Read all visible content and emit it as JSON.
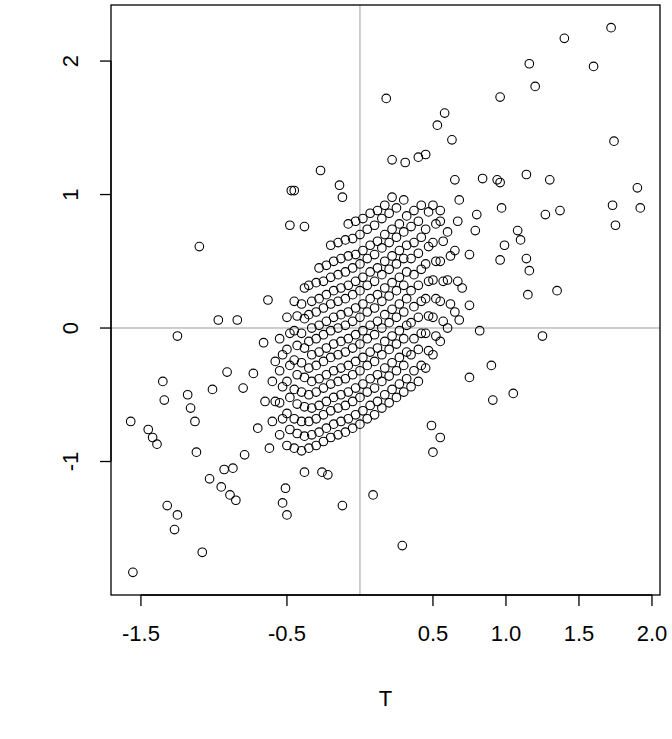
{
  "chart_data": {
    "type": "scatter",
    "xlabel": "T",
    "color": "#000000",
    "marker": "circle-open",
    "xlim": [
      -1.705,
      2.055
    ],
    "ylim": [
      -2.0,
      2.42
    ],
    "xticks": [
      -1.5,
      -0.5,
      0.5,
      {
        "value": 1.0,
        "label": "1.0"
      },
      1.5,
      {
        "value": 2.0,
        "label": "2.0"
      }
    ],
    "yticks": [
      -1,
      0,
      1,
      2
    ],
    "hlines": [
      0
    ],
    "vlines": [
      0
    ],
    "x": [
      -0.6,
      -0.58,
      -0.6,
      -0.58,
      -0.55,
      -0.53,
      -0.55,
      -0.53,
      -0.55,
      -0.53,
      -0.55,
      -0.5,
      -0.48,
      -0.5,
      -0.48,
      -0.5,
      -0.48,
      -0.5,
      -0.48,
      -0.5,
      -0.45,
      -0.43,
      -0.45,
      -0.43,
      -0.45,
      -0.43,
      -0.45,
      -0.43,
      -0.45,
      -0.43,
      -0.45,
      -0.4,
      -0.38,
      -0.4,
      -0.38,
      -0.4,
      -0.38,
      -0.4,
      -0.38,
      -0.4,
      -0.38,
      -0.4,
      -0.38,
      -0.35,
      -0.33,
      -0.35,
      -0.33,
      -0.35,
      -0.33,
      -0.35,
      -0.33,
      -0.35,
      -0.33,
      -0.35,
      -0.33,
      -0.35,
      -0.3,
      -0.28,
      -0.3,
      -0.28,
      -0.3,
      -0.28,
      -0.3,
      -0.28,
      -0.3,
      -0.28,
      -0.3,
      -0.28,
      -0.3,
      -0.28,
      -0.25,
      -0.23,
      -0.25,
      -0.23,
      -0.25,
      -0.23,
      -0.25,
      -0.23,
      -0.25,
      -0.23,
      -0.25,
      -0.23,
      -0.25,
      -0.23,
      -0.2,
      -0.18,
      -0.2,
      -0.18,
      -0.2,
      -0.18,
      -0.2,
      -0.18,
      -0.2,
      -0.18,
      -0.2,
      -0.18,
      -0.2,
      -0.18,
      -0.2,
      -0.15,
      -0.13,
      -0.15,
      -0.13,
      -0.15,
      -0.13,
      -0.15,
      -0.13,
      -0.15,
      -0.13,
      -0.15,
      -0.13,
      -0.15,
      -0.13,
      -0.15,
      -0.1,
      -0.08,
      -0.1,
      -0.08,
      -0.1,
      -0.08,
      -0.1,
      -0.08,
      -0.1,
      -0.08,
      -0.1,
      -0.08,
      -0.1,
      -0.08,
      -0.1,
      -0.08,
      -0.05,
      -0.03,
      -0.05,
      -0.03,
      -0.05,
      -0.03,
      -0.05,
      -0.03,
      -0.05,
      -0.03,
      -0.05,
      -0.03,
      -0.05,
      -0.03,
      -0.05,
      -0.03,
      0.0,
      0.02,
      0.0,
      0.02,
      0.0,
      0.02,
      0.0,
      0.02,
      0.0,
      0.02,
      0.0,
      0.02,
      0.0,
      0.02,
      0.0,
      0.02,
      0.05,
      0.07,
      0.05,
      0.07,
      0.05,
      0.07,
      0.05,
      0.07,
      0.05,
      0.07,
      0.05,
      0.07,
      0.05,
      0.07,
      0.05,
      0.07,
      0.1,
      0.12,
      0.1,
      0.12,
      0.1,
      0.12,
      0.1,
      0.12,
      0.1,
      0.12,
      0.1,
      0.12,
      0.1,
      0.12,
      0.1,
      0.12,
      0.15,
      0.17,
      0.15,
      0.17,
      0.15,
      0.17,
      0.15,
      0.17,
      0.15,
      0.17,
      0.15,
      0.17,
      0.15,
      0.17,
      0.15,
      0.17,
      0.2,
      0.22,
      0.2,
      0.22,
      0.2,
      0.22,
      0.2,
      0.22,
      0.2,
      0.22,
      0.2,
      0.22,
      0.2,
      0.22,
      0.2,
      0.22,
      0.25,
      0.27,
      0.25,
      0.27,
      0.25,
      0.27,
      0.25,
      0.27,
      0.25,
      0.27,
      0.25,
      0.27,
      0.25,
      0.27,
      0.25,
      0.3,
      0.32,
      0.3,
      0.32,
      0.3,
      0.32,
      0.3,
      0.32,
      0.3,
      0.32,
      0.3,
      0.32,
      0.3,
      0.32,
      0.3,
      0.35,
      0.37,
      0.35,
      0.37,
      0.35,
      0.37,
      0.35,
      0.37,
      0.35,
      0.37,
      0.35,
      0.37,
      0.4,
      0.42,
      0.4,
      0.42,
      0.4,
      0.42,
      0.4,
      0.42,
      0.4,
      0.42,
      0.4,
      0.42,
      0.45,
      0.47,
      0.45,
      0.47,
      0.45,
      0.47,
      0.45,
      0.47,
      0.45,
      0.47,
      0.5,
      0.52,
      0.5,
      0.52,
      0.5,
      0.52,
      0.5,
      0.52,
      0.5,
      0.55,
      0.57,
      0.55,
      0.57,
      0.55,
      0.57,
      0.55,
      0.6,
      0.62,
      0.6,
      0.62,
      0.6,
      0.65,
      0.67,
      0.65,
      0.67,
      -1.555,
      -1.57,
      -1.45,
      -1.42,
      -1.39,
      -1.35,
      -1.34,
      -1.32,
      -1.27,
      -1.25,
      -1.25,
      -1.16,
      -1.13,
      -1.18,
      -1.1,
      -1.08,
      -1.12,
      -1.03,
      -0.97,
      -1.01,
      -0.95,
      -0.89,
      -0.85,
      -0.93,
      -0.87,
      -0.84,
      -0.91,
      -0.8,
      -0.79,
      -0.73,
      -0.66,
      -0.63,
      -0.53,
      -0.5,
      -0.47,
      -0.45,
      -0.48,
      -0.38,
      -0.27,
      -0.14,
      -0.12,
      -0.22,
      -0.26,
      -0.12,
      0.09,
      0.29,
      0.18,
      0.22,
      0.31,
      0.53,
      0.58,
      0.63,
      0.49,
      0.55,
      0.5,
      0.75,
      0.91,
      0.9,
      1.05,
      0.94,
      0.96,
      0.96,
      0.84,
      1.14,
      1.16,
      1.2,
      1.25,
      1.35,
      1.27,
      1.37,
      1.3,
      1.4,
      1.6,
      1.72,
      1.73,
      1.74,
      1.75,
      1.9,
      1.92,
      1.14,
      1.15,
      1.16,
      1.1,
      0.99,
      0.97,
      0.79,
      1.08,
      0.68,
      0.65,
      0.55,
      0.45,
      -0.51,
      -0.38,
      0.4,
      0.68,
      0.82,
      0.75,
      0.96,
      -0.7,
      -0.65,
      0.75,
      0.7,
      -0.62,
      0.8
    ],
    "values": [
      -0.7,
      -0.55,
      -0.4,
      -0.25,
      -0.8,
      -0.68,
      -0.56,
      -0.44,
      -0.32,
      -0.2,
      -0.08,
      -0.88,
      -0.76,
      -0.64,
      -0.52,
      -0.4,
      -0.28,
      -0.16,
      -0.04,
      0.08,
      -0.9,
      -0.79,
      -0.68,
      -0.57,
      -0.46,
      -0.35,
      -0.24,
      -0.13,
      -0.02,
      0.09,
      0.2,
      -0.92,
      -0.81,
      -0.7,
      -0.59,
      -0.48,
      -0.37,
      -0.26,
      -0.15,
      -0.04,
      0.07,
      0.18,
      0.3,
      -0.9,
      -0.8,
      -0.7,
      -0.6,
      -0.5,
      -0.4,
      -0.3,
      -0.2,
      -0.1,
      0.0,
      0.1,
      0.2,
      0.32,
      -0.88,
      -0.78,
      -0.68,
      -0.58,
      -0.48,
      -0.38,
      -0.28,
      -0.18,
      -0.08,
      0.02,
      0.12,
      0.22,
      0.34,
      0.45,
      -0.85,
      -0.75,
      -0.65,
      -0.55,
      -0.45,
      -0.35,
      -0.25,
      -0.15,
      -0.05,
      0.05,
      0.15,
      0.25,
      0.35,
      0.47,
      -0.82,
      -0.72,
      -0.62,
      -0.52,
      -0.42,
      -0.32,
      -0.22,
      -0.12,
      -0.02,
      0.08,
      0.18,
      0.28,
      0.38,
      0.5,
      0.62,
      -0.8,
      -0.7,
      -0.6,
      -0.5,
      -0.4,
      -0.3,
      -0.2,
      -0.1,
      0.0,
      0.1,
      0.2,
      0.3,
      0.4,
      0.52,
      0.64,
      -0.78,
      -0.68,
      -0.58,
      -0.48,
      -0.38,
      -0.28,
      -0.18,
      -0.08,
      0.02,
      0.12,
      0.22,
      0.32,
      0.42,
      0.54,
      0.66,
      0.78,
      -0.75,
      -0.65,
      -0.55,
      -0.45,
      -0.35,
      -0.25,
      -0.15,
      -0.05,
      0.05,
      0.15,
      0.25,
      0.35,
      0.45,
      0.55,
      0.67,
      0.8,
      -0.72,
      -0.62,
      -0.52,
      -0.42,
      -0.32,
      -0.22,
      -0.12,
      -0.02,
      0.08,
      0.18,
      0.28,
      0.38,
      0.48,
      0.58,
      0.7,
      0.82,
      -0.68,
      -0.58,
      -0.48,
      -0.38,
      -0.28,
      -0.18,
      -0.08,
      0.02,
      0.12,
      0.22,
      0.32,
      0.42,
      0.52,
      0.62,
      0.74,
      0.86,
      -0.65,
      -0.55,
      -0.45,
      -0.35,
      -0.25,
      -0.15,
      -0.05,
      0.05,
      0.15,
      0.25,
      0.35,
      0.45,
      0.55,
      0.65,
      0.77,
      0.88,
      -0.6,
      -0.5,
      -0.4,
      -0.3,
      -0.2,
      -0.1,
      0.0,
      0.1,
      0.2,
      0.3,
      0.4,
      0.5,
      0.6,
      0.7,
      0.82,
      0.92,
      -0.56,
      -0.46,
      -0.36,
      -0.26,
      -0.16,
      -0.06,
      0.04,
      0.14,
      0.24,
      0.34,
      0.44,
      0.54,
      0.64,
      0.74,
      0.86,
      0.98,
      -0.52,
      -0.42,
      -0.32,
      -0.22,
      -0.12,
      -0.02,
      0.08,
      0.18,
      0.28,
      0.38,
      0.48,
      0.58,
      0.68,
      0.78,
      0.9,
      -0.48,
      -0.38,
      -0.28,
      -0.18,
      -0.08,
      0.02,
      0.12,
      0.22,
      0.32,
      0.42,
      0.52,
      0.62,
      0.72,
      0.84,
      0.96,
      -0.44,
      -0.32,
      -0.2,
      -0.08,
      0.04,
      0.16,
      0.28,
      0.4,
      0.52,
      0.64,
      0.76,
      0.88,
      -0.4,
      -0.28,
      -0.16,
      -0.04,
      0.08,
      0.2,
      0.32,
      0.44,
      0.56,
      0.68,
      0.8,
      0.92,
      -0.3,
      -0.17,
      -0.04,
      0.09,
      0.22,
      0.35,
      0.48,
      0.61,
      0.74,
      0.87,
      -0.2,
      -0.06,
      0.08,
      0.22,
      0.36,
      0.5,
      0.64,
      0.78,
      0.92,
      -0.1,
      0.05,
      0.2,
      0.35,
      0.5,
      0.65,
      0.8,
      0.0,
      0.18,
      0.36,
      0.54,
      0.72,
      0.12,
      0.35,
      0.58,
      0.8,
      -1.83,
      -0.7,
      -0.76,
      -0.82,
      -0.87,
      -0.4,
      -0.54,
      -1.33,
      -1.51,
      -1.4,
      -0.06,
      -0.6,
      -0.7,
      -0.5,
      0.61,
      -1.68,
      -0.93,
      -1.13,
      0.06,
      -0.46,
      -1.19,
      -1.25,
      -1.29,
      -1.06,
      -1.05,
      0.06,
      -0.33,
      -0.45,
      -0.95,
      -0.34,
      -0.11,
      0.21,
      -1.31,
      -1.4,
      1.03,
      1.03,
      0.77,
      0.76,
      1.18,
      1.07,
      0.98,
      -1.1,
      -1.08,
      -1.33,
      -1.25,
      -1.63,
      1.72,
      1.26,
      1.24,
      1.52,
      1.61,
      1.41,
      -0.73,
      -0.82,
      -0.93,
      -0.37,
      -0.54,
      -0.28,
      -0.49,
      1.11,
      1.09,
      1.73,
      1.12,
      1.15,
      1.98,
      1.81,
      -0.06,
      0.28,
      0.85,
      0.88,
      1.11,
      2.17,
      1.96,
      2.25,
      0.92,
      1.4,
      0.77,
      1.05,
      0.9,
      0.52,
      0.25,
      0.43,
      0.66,
      0.62,
      0.9,
      0.73,
      0.73,
      0.96,
      1.11,
      0.88,
      1.3,
      -1.2,
      -1.08,
      1.28,
      0.06,
      -0.02,
      0.17,
      0.51,
      -0.75,
      -0.55,
      0.55,
      0.3,
      -0.9,
      0.85
    ]
  }
}
